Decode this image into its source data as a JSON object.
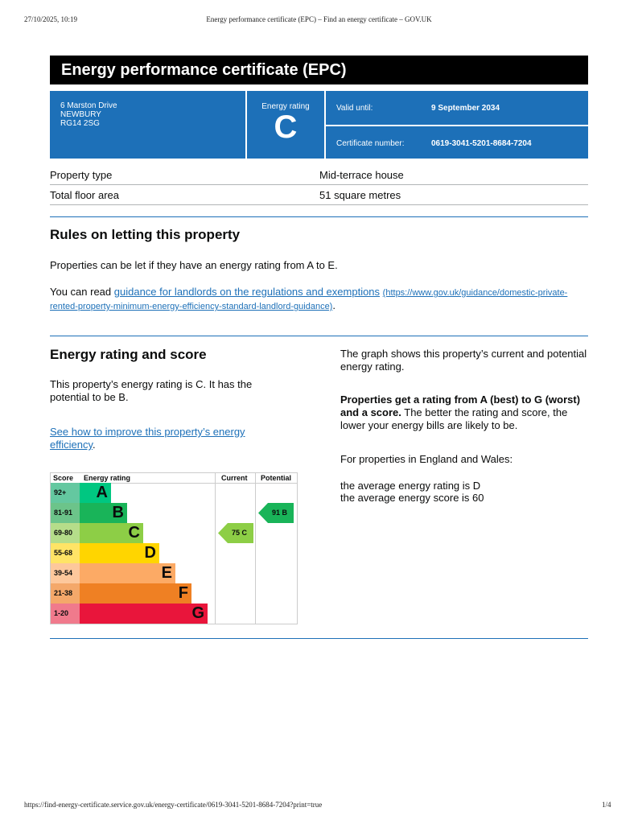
{
  "print_header": {
    "date": "27/10/2025, 10:19",
    "title": "Energy performance certificate (EPC) – Find an energy certificate – GOV.UK"
  },
  "title": "Energy performance certificate (EPC)",
  "address": [
    "6 Marston Drive",
    "NEWBURY",
    "RG14 2SG"
  ],
  "rating_label": "Energy rating",
  "rating": "C",
  "valid_label": "Valid until:",
  "valid_value": "9 September 2034",
  "cert_label": "Certificate number:",
  "cert_value": "0619-3041-5201-8684-7204",
  "summary": [
    {
      "label": "Property type",
      "value": "Mid-terrace house"
    },
    {
      "label": "Total floor area",
      "value": "51 square metres"
    }
  ],
  "rules": {
    "heading": "Rules on letting this property",
    "p1": "Properties can be let if they have an energy rating from A to E.",
    "p2_pre": "You can read ",
    "link": "guidance for landlords on the regulations and exemptions",
    "url": "(https://www.gov.uk/guidance/domestic-private-rented-property-minimum-energy-efficiency-standard-landlord-guidance)",
    "p2_post": "."
  },
  "score": {
    "heading": "Energy rating and score",
    "p1": "This property’s energy rating is C. It has the potential to be B.",
    "link": "See how to improve this property’s energy efficiency",
    "link_post": ".",
    "r1": "The graph shows this property’s current and potential energy rating.",
    "r2_bold": "Properties get a rating from A (best) to G (worst) and a score.",
    "r2": " The better the rating and score, the lower your energy bills are likely to be.",
    "r3": "For properties in England and Wales:",
    "r4": "the average energy rating is D",
    "r5": "the average energy score is 60"
  },
  "chart": {
    "headers": {
      "score": "Score",
      "rating": "Energy rating",
      "current": "Current",
      "potential": "Potential"
    },
    "bands": [
      {
        "score": "92+",
        "letter": "A",
        "color": "#00c781",
        "light": "#64c8a0"
      },
      {
        "score": "81-91",
        "letter": "B",
        "color": "#19b459",
        "light": "#6cc48a"
      },
      {
        "score": "69-80",
        "letter": "C",
        "color": "#8dce46",
        "light": "#b5dd8a"
      },
      {
        "score": "55-68",
        "letter": "D",
        "color": "#ffd500",
        "light": "#ffe466"
      },
      {
        "score": "39-54",
        "letter": "E",
        "color": "#fcaa65",
        "light": "#fdc89c"
      },
      {
        "score": "21-38",
        "letter": "F",
        "color": "#ef8023",
        "light": "#f4a86a"
      },
      {
        "score": "1-20",
        "letter": "G",
        "color": "#e9153b",
        "light": "#f07a8c"
      }
    ],
    "current": {
      "label": "75  C",
      "band": 2,
      "color": "#8dce46"
    },
    "potential": {
      "label": "91  B",
      "band": 1,
      "color": "#19b459"
    }
  },
  "footer": {
    "url": "https://find-energy-certificate.service.gov.uk/energy-certificate/0619-3041-5201-8684-7204?print=true",
    "page": "1/4"
  }
}
